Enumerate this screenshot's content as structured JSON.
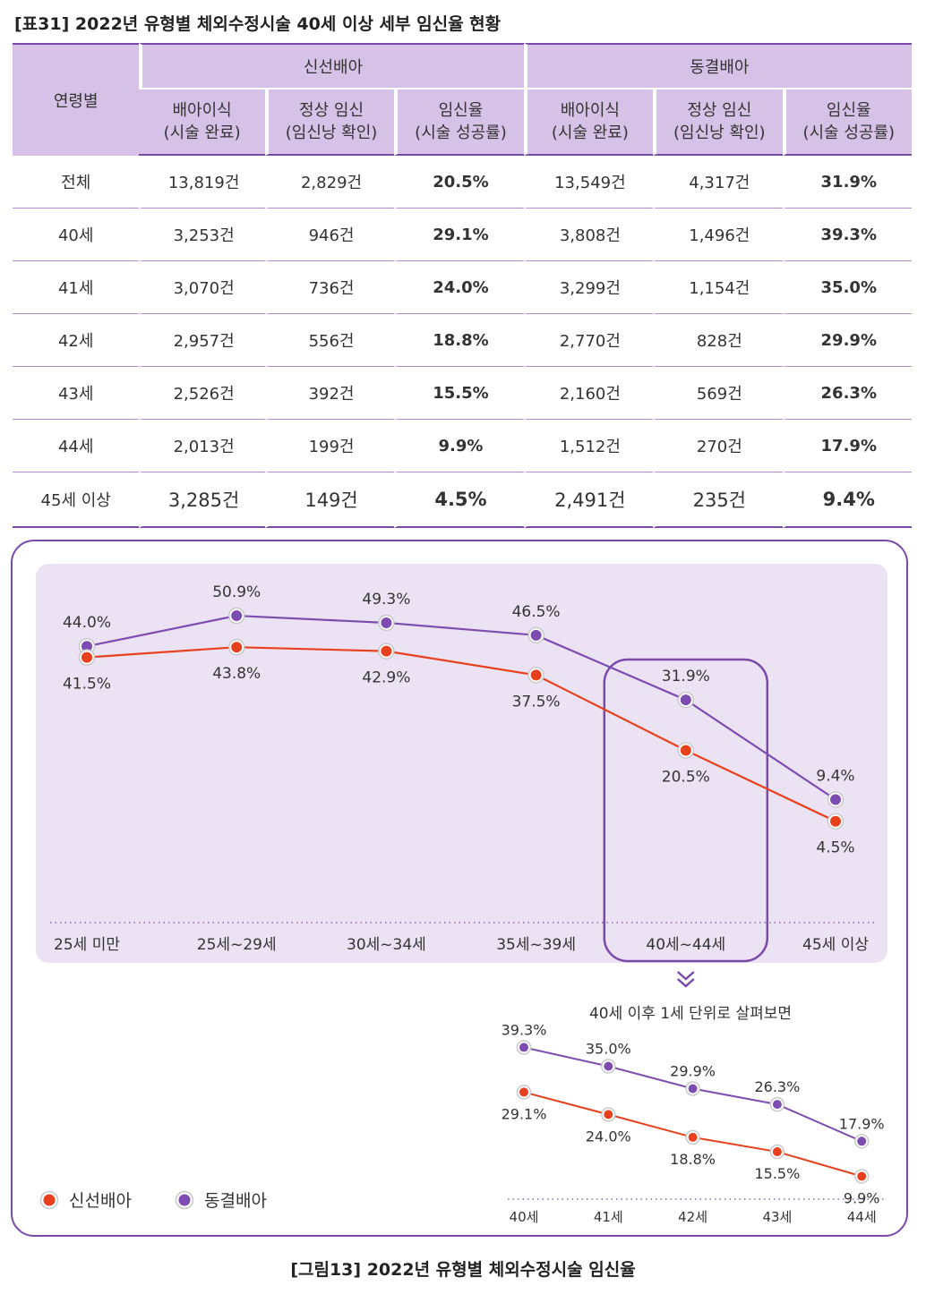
{
  "table_title": "[표31] 2022년 유형별 체외수정시술 40세 이상 세부 임신율 현황",
  "table": {
    "age_header": "연령별",
    "groups": [
      "신선배아",
      "동결배아"
    ],
    "sub_headers": [
      [
        "배아이식",
        "(시술 완료)"
      ],
      [
        "정상 임신",
        "(임신낭 확인)"
      ],
      [
        "임신율",
        "(시술 성공률)"
      ]
    ],
    "rows": [
      {
        "age": "전체",
        "cells": [
          "13,819건",
          "2,829건",
          "20.5%",
          "13,549건",
          "4,317건",
          "31.9%"
        ]
      },
      {
        "age": "40세",
        "cells": [
          "3,253건",
          "946건",
          "29.1%",
          "3,808건",
          "1,496건",
          "39.3%"
        ]
      },
      {
        "age": "41세",
        "cells": [
          "3,070건",
          "736건",
          "24.0%",
          "3,299건",
          "1,154건",
          "35.0%"
        ]
      },
      {
        "age": "42세",
        "cells": [
          "2,957건",
          "556건",
          "18.8%",
          "2,770건",
          "828건",
          "29.9%"
        ]
      },
      {
        "age": "43세",
        "cells": [
          "2,526건",
          "392건",
          "15.5%",
          "2,160건",
          "569건",
          "26.3%"
        ]
      },
      {
        "age": "44세",
        "cells": [
          "2,013건",
          "199건",
          "9.9%",
          "1,512건",
          "270건",
          "17.9%"
        ]
      },
      {
        "age": "45세 이상",
        "cells": [
          "3,285건",
          "149건",
          "4.5%",
          "2,491건",
          "235건",
          "9.4%"
        ]
      }
    ]
  },
  "colors": {
    "fresh": "#e8401c",
    "frozen": "#7d4cb0",
    "panel_bg": "#ebe3f3",
    "frame": "#7a4aa8"
  },
  "chart_data": [
    {
      "type": "line",
      "title": "",
      "categories": [
        "25세 미만",
        "25세~29세",
        "30세~34세",
        "35세~39세",
        "40세~44세",
        "45세 이상"
      ],
      "series": [
        {
          "name": "동결배아",
          "values": [
            44.0,
            50.9,
            49.3,
            46.5,
            31.9,
            9.4
          ],
          "labels": [
            "44.0%",
            "50.9%",
            "49.3%",
            "46.5%",
            "31.9%",
            "9.4%"
          ]
        },
        {
          "name": "신선배아",
          "values": [
            41.5,
            43.8,
            42.9,
            37.5,
            20.5,
            4.5
          ],
          "labels": [
            "41.5%",
            "43.8%",
            "42.9%",
            "37.5%",
            "20.5%",
            "4.5%"
          ]
        }
      ],
      "ylim": [
        0,
        55
      ],
      "highlight_category": "40세~44세"
    },
    {
      "type": "line",
      "title": "40세 이후 1세 단위로 살펴보면",
      "categories": [
        "40세",
        "41세",
        "42세",
        "43세",
        "44세"
      ],
      "series": [
        {
          "name": "동결배아",
          "values": [
            39.3,
            35.0,
            29.9,
            26.3,
            17.9
          ],
          "labels": [
            "39.3%",
            "35.0%",
            "29.9%",
            "26.3%",
            "17.9%"
          ]
        },
        {
          "name": "신선배아",
          "values": [
            29.1,
            24.0,
            18.8,
            15.5,
            9.9
          ],
          "labels": [
            "29.1%",
            "24.0%",
            "18.8%",
            "15.5%",
            "9.9%"
          ]
        }
      ],
      "ylim": [
        0,
        45
      ]
    }
  ],
  "legend": [
    {
      "name": "신선배아",
      "color_key": "fresh"
    },
    {
      "name": "동결배아",
      "color_key": "frozen"
    }
  ],
  "figure_caption": "[그림13] 2022년 유형별 체외수정시술 임신율"
}
